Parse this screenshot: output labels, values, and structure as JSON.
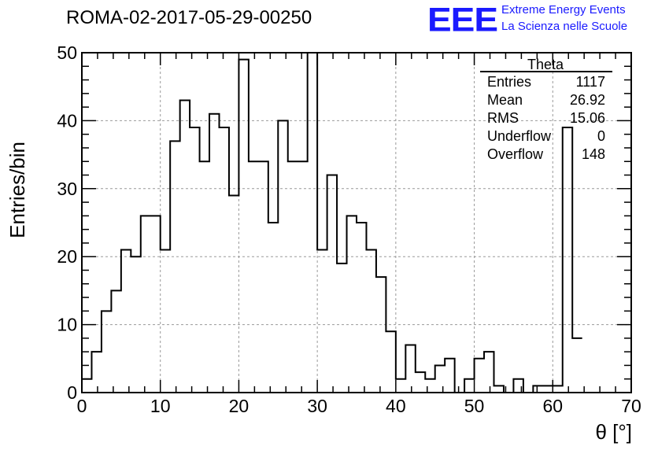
{
  "header": {
    "run_title": "ROMA-02-2017-05-29-00250",
    "logo_text": "EEE",
    "org_line1": "Extreme Energy Events",
    "org_line2": "La Scienza nelle Scuole",
    "logo_color": "#1a1aff"
  },
  "stats_box": {
    "title": "Theta",
    "rows": [
      {
        "label": "Entries",
        "value": "1117"
      },
      {
        "label": "Mean",
        "value": "26.92"
      },
      {
        "label": "RMS",
        "value": "15.06"
      },
      {
        "label": "Underflow",
        "value": "0"
      },
      {
        "label": "Overflow",
        "value": "148"
      }
    ]
  },
  "chart_data": {
    "type": "histogram",
    "title": "ROMA-02-2017-05-29-00250",
    "xlabel": "θ [°]",
    "ylabel": "Entries/bin",
    "xlim": [
      0,
      70
    ],
    "ylim": [
      0,
      50
    ],
    "xticks": [
      0,
      10,
      20,
      30,
      40,
      50,
      60,
      70
    ],
    "yticks": [
      0,
      10,
      20,
      30,
      40,
      50
    ],
    "bin_width": 1.25,
    "bin_edges_start": 0,
    "values": [
      2,
      6,
      12,
      15,
      21,
      20,
      26,
      26,
      21,
      37,
      43,
      39,
      34,
      41,
      39,
      29,
      49,
      34,
      34,
      25,
      40,
      34,
      34,
      50,
      21,
      32,
      19,
      26,
      25,
      21,
      17,
      9,
      2,
      7,
      3,
      2,
      4,
      5,
      0,
      2,
      5,
      6,
      1,
      0,
      2,
      0,
      1,
      1,
      1,
      39,
      8
    ],
    "grid": true,
    "line_color": "#000000"
  }
}
